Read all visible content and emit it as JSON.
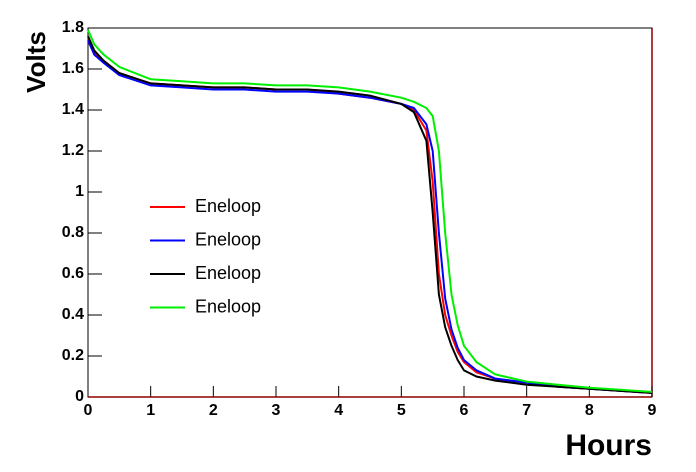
{
  "chart_data": {
    "type": "line",
    "x_label": "Hours",
    "y_label": "Volts",
    "x": [
      0,
      0.1,
      0.25,
      0.5,
      1,
      1.5,
      2,
      2.5,
      3,
      3.5,
      4,
      4.5,
      5,
      5.2,
      5.4,
      5.5,
      5.6,
      5.7,
      5.8,
      5.9,
      6,
      6.2,
      6.5,
      7,
      7.5,
      8,
      8.5,
      9
    ],
    "series": [
      {
        "name": "Eneloop",
        "color": "#ff0000",
        "values": [
          1.75,
          1.68,
          1.64,
          1.58,
          1.53,
          1.52,
          1.51,
          1.51,
          1.5,
          1.5,
          1.48,
          1.46,
          1.43,
          1.4,
          1.3,
          1.05,
          0.6,
          0.4,
          0.3,
          0.22,
          0.17,
          0.12,
          0.09,
          0.07,
          0.05,
          0.04,
          0.03,
          0.02
        ]
      },
      {
        "name": "Eneloop",
        "color": "#0000ff",
        "values": [
          1.74,
          1.67,
          1.63,
          1.57,
          1.52,
          1.51,
          1.5,
          1.5,
          1.49,
          1.49,
          1.48,
          1.46,
          1.43,
          1.41,
          1.33,
          1.2,
          0.8,
          0.48,
          0.33,
          0.24,
          0.18,
          0.13,
          0.09,
          0.07,
          0.05,
          0.04,
          0.03,
          0.02
        ]
      },
      {
        "name": "Eneloop",
        "color": "#000000",
        "values": [
          1.76,
          1.69,
          1.64,
          1.58,
          1.53,
          1.52,
          1.51,
          1.51,
          1.5,
          1.5,
          1.49,
          1.47,
          1.43,
          1.39,
          1.25,
          0.9,
          0.5,
          0.34,
          0.25,
          0.18,
          0.13,
          0.1,
          0.08,
          0.06,
          0.05,
          0.04,
          0.03,
          0.02
        ]
      },
      {
        "name": "Eneloop",
        "color": "#00ee00",
        "values": [
          1.79,
          1.72,
          1.67,
          1.61,
          1.55,
          1.54,
          1.53,
          1.53,
          1.52,
          1.52,
          1.51,
          1.49,
          1.46,
          1.44,
          1.41,
          1.37,
          1.2,
          0.8,
          0.5,
          0.35,
          0.25,
          0.17,
          0.11,
          0.075,
          0.06,
          0.045,
          0.035,
          0.025
        ]
      }
    ],
    "xlim": [
      0,
      9
    ],
    "ylim": [
      0,
      1.8
    ],
    "xticks": [
      0,
      1,
      2,
      3,
      4,
      5,
      6,
      7,
      8,
      9
    ],
    "yticks": [
      0,
      0.2,
      0.4,
      0.6,
      0.8,
      1,
      1.2,
      1.4,
      1.6,
      1.8
    ]
  }
}
